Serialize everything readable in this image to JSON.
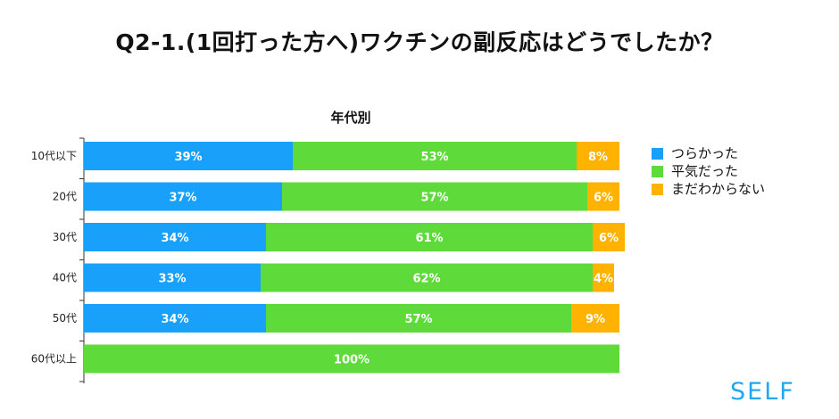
{
  "title": "Q2-1.(1回打った方へ)ワクチンの副反応はどうでしたか？",
  "brand": "SELF",
  "colors": {
    "series": [
      "#18a0fb",
      "#5edb3a",
      "#ffb300"
    ],
    "axis": "#333333"
  },
  "chart_data": {
    "type": "bar",
    "orientation": "horizontal",
    "stacked": true,
    "subtitle": "年代別",
    "categories": [
      "10代以下",
      "20代",
      "30代",
      "40代",
      "50代",
      "60代以上"
    ],
    "series": [
      {
        "name": "つらかった",
        "values": [
          39,
          37,
          34,
          33,
          34,
          0
        ],
        "labels": [
          "39%",
          "37%",
          "34%",
          "33%",
          "34%",
          ""
        ]
      },
      {
        "name": "平気だった",
        "values": [
          53,
          57,
          61,
          62,
          57,
          100
        ],
        "labels": [
          "53%",
          "57%",
          "61%",
          "62%",
          "57%",
          "100%"
        ]
      },
      {
        "name": "まだわからない",
        "values": [
          8,
          6,
          6,
          4,
          9,
          0
        ],
        "labels": [
          "8%",
          "6%",
          "6%",
          "4%",
          "9%",
          ""
        ]
      }
    ],
    "xlim": [
      0,
      100
    ],
    "legend_position": "right"
  }
}
